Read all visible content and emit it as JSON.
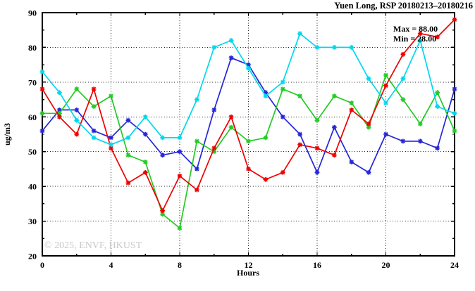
{
  "chart_data": {
    "type": "line",
    "title": "Yuen Long, RSP 20180213–20180216",
    "xlabel": "Hours",
    "ylabel": "ug/m3",
    "annotation_max": "Max = 88.00",
    "annotation_min": "Min = 28.00",
    "watermark": "© 2025, ENVF, HKUST",
    "xlim": [
      0,
      24
    ],
    "ylim": [
      20,
      90
    ],
    "x_major_ticks": [
      0,
      4,
      8,
      12,
      16,
      20,
      24
    ],
    "x_minor_step": 2,
    "y_major_ticks": [
      20,
      30,
      40,
      50,
      60,
      70,
      80,
      90
    ],
    "y_minor_step": 5,
    "grid": "dotted black grid at major ticks",
    "legend_position": "none",
    "marker": "asterisk",
    "x": [
      0,
      1,
      2,
      3,
      4,
      5,
      6,
      7,
      8,
      9,
      10,
      11,
      12,
      13,
      14,
      15,
      16,
      17,
      18,
      19,
      20,
      21,
      22,
      23,
      24
    ],
    "series": [
      {
        "name": "blue",
        "color": "#2626d8",
        "values": [
          56,
          62,
          62,
          56,
          54,
          59,
          55,
          49,
          50,
          45,
          62,
          77,
          75,
          67,
          60,
          55,
          44,
          57,
          47,
          44,
          55,
          53,
          53,
          51,
          68
        ]
      },
      {
        "name": "green",
        "color": "#22cc22",
        "values": [
          61,
          61,
          68,
          63,
          66,
          49,
          47,
          32,
          28,
          53,
          50,
          57,
          53,
          54,
          68,
          66,
          59,
          66,
          64,
          57,
          72,
          65,
          58,
          67,
          56
        ]
      },
      {
        "name": "red",
        "color": "#ee0000",
        "values": [
          68,
          60,
          55,
          68,
          51,
          41,
          44,
          33,
          43,
          39,
          51,
          60,
          45,
          42,
          44,
          52,
          51,
          49,
          62,
          58,
          69,
          78,
          84,
          83,
          88
        ]
      },
      {
        "name": "cyan",
        "color": "#00d8ee",
        "values": [
          73,
          67,
          59,
          54,
          52,
          54,
          60,
          54,
          54,
          65,
          80,
          82,
          74,
          66,
          70,
          84,
          80,
          80,
          80,
          71,
          64,
          71,
          82,
          63,
          61
        ]
      }
    ]
  }
}
